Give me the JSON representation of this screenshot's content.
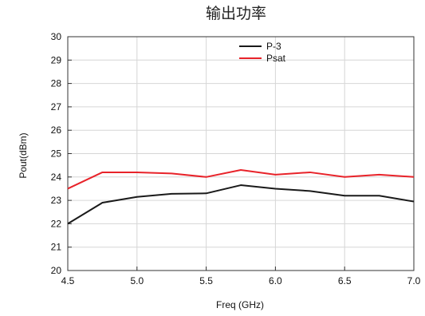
{
  "chart_data": {
    "type": "line",
    "title": "输出功率",
    "xlabel": "Freq (GHz)",
    "ylabel": "Pout(dBm)",
    "xlim": [
      4.5,
      7.0
    ],
    "ylim": [
      20,
      30
    ],
    "xticks": [
      "4.5",
      "5.0",
      "5.5",
      "6.0",
      "6.5",
      "7.0"
    ],
    "yticks": [
      "20",
      "21",
      "22",
      "23",
      "24",
      "25",
      "26",
      "27",
      "28",
      "29",
      "30"
    ],
    "grid": true,
    "legend_position": "top-center",
    "x": [
      4.5,
      4.75,
      5.0,
      5.25,
      5.5,
      5.75,
      6.0,
      6.25,
      6.5,
      6.75,
      7.0
    ],
    "series": [
      {
        "name": "P-3",
        "color": "#1a1a1a",
        "values": [
          22.0,
          22.9,
          23.15,
          23.28,
          23.3,
          23.65,
          23.5,
          23.4,
          23.2,
          23.2,
          22.95
        ]
      },
      {
        "name": "Psat",
        "color": "#e8232a",
        "values": [
          23.5,
          24.2,
          24.2,
          24.15,
          24.0,
          24.3,
          24.1,
          24.2,
          24.0,
          24.1,
          24.0
        ]
      }
    ]
  }
}
